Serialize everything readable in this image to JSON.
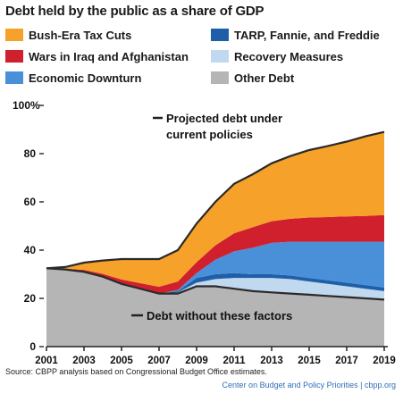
{
  "chart_data": {
    "type": "area",
    "title": "Debt held by the public as a share of GDP",
    "x": [
      2001,
      2002,
      2003,
      2004,
      2005,
      2006,
      2007,
      2008,
      2009,
      2010,
      2011,
      2012,
      2013,
      2014,
      2015,
      2016,
      2017,
      2018,
      2019
    ],
    "x_ticks": [
      "2001",
      "2003",
      "2005",
      "2007",
      "2009",
      "2011",
      "2013",
      "2015",
      "2017",
      "2019"
    ],
    "y_ticks": [
      "0",
      "20",
      "40",
      "60",
      "80",
      "100%"
    ],
    "ylim": [
      0,
      100
    ],
    "stack_order": [
      "Other Debt",
      "Recovery Measures",
      "TARP, Fannie, and Freddie",
      "Economic Downturn",
      "Wars in Iraq and Afghanistan",
      "Bush-Era Tax Cuts"
    ],
    "series": [
      {
        "name": "Other Debt",
        "color": "#b5b5b5",
        "values": [
          32.5,
          32,
          31,
          29,
          26,
          24,
          22,
          22,
          25,
          25,
          24,
          23,
          22.5,
          22,
          21.5,
          21,
          20.5,
          20,
          19.5
        ]
      },
      {
        "name": "Recovery Measures",
        "color": "#c0d9ef",
        "values": [
          0,
          0,
          0,
          0,
          0,
          0,
          0,
          0.5,
          1.5,
          3,
          4.5,
          5.5,
          6,
          6,
          5.5,
          5,
          4.5,
          4,
          3.5
        ]
      },
      {
        "name": "TARP, Fannie, and Freddie",
        "color": "#1f5fa8",
        "values": [
          0,
          0,
          0,
          0,
          0,
          0,
          0,
          0.5,
          2,
          2,
          2,
          1.5,
          1.5,
          1.5,
          1.5,
          1.5,
          1.5,
          1.5,
          1.5
        ]
      },
      {
        "name": "Economic Downturn",
        "color": "#4a90d9",
        "values": [
          0,
          0,
          0,
          0,
          0,
          0,
          0,
          0.5,
          2,
          6,
          9,
          11,
          13,
          14,
          15,
          16,
          17,
          18,
          19
        ]
      },
      {
        "name": "Wars in Iraq and Afghanistan",
        "color": "#d0202e",
        "values": [
          0,
          0.3,
          0.8,
          1.2,
          1.8,
          2.3,
          2.8,
          3.5,
          4.5,
          6,
          7.5,
          8.5,
          9,
          9.5,
          10,
          10.2,
          10.5,
          10.7,
          11
        ]
      },
      {
        "name": "Bush-Era Tax Cuts",
        "color": "#f6a22a",
        "values": [
          0,
          0.7,
          3,
          5.5,
          8.5,
          10,
          11.5,
          13,
          16,
          18,
          20.5,
          22,
          24,
          26,
          28,
          29.5,
          31,
          33,
          34.5
        ]
      }
    ],
    "annotations": [
      {
        "text": "Projected debt under current policies"
      },
      {
        "text": "Debt without these factors"
      }
    ],
    "grid": false
  },
  "legend": {
    "items": [
      {
        "label": "Bush-Era Tax Cuts",
        "color": "#f6a22a"
      },
      {
        "label": "TARP, Fannie, and Freddie",
        "color": "#1f5fa8"
      },
      {
        "label": "Wars in Iraq and Afghanistan",
        "color": "#d0202e"
      },
      {
        "label": "Recovery Measures",
        "color": "#c0d9ef"
      },
      {
        "label": "Economic Downturn",
        "color": "#4a90d9"
      },
      {
        "label": "Other Debt",
        "color": "#b5b5b5"
      }
    ]
  },
  "annotation_top": {
    "line1": "Projected debt under",
    "line2": "current policies"
  },
  "annotation_bottom": "Debt without these factors",
  "source": "Source: CBPP analysis based on Congressional Budget Office estimates.",
  "credit": "Center on Budget and Policy Priorities | cbpp.org"
}
